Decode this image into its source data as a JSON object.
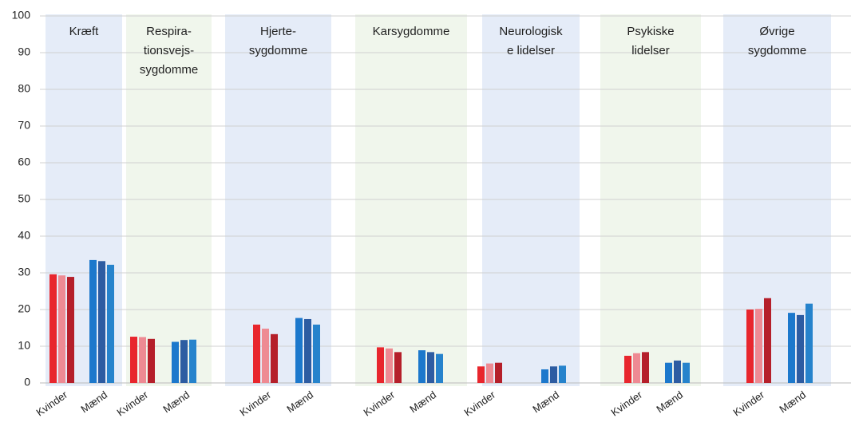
{
  "chart_data": {
    "type": "bar",
    "subgroups": [
      "Kvinder",
      "Mænd"
    ],
    "colors": [
      [
        "#e8262d",
        "#ee8a93",
        "#b51f2a"
      ],
      [
        "#1c78cc",
        "#2d5ca2",
        "#2683cc"
      ]
    ],
    "band_colors": {
      "blue": "#e5ecf8",
      "green": "#f0f6ec"
    },
    "groups": [
      {
        "name_lines": [
          "Kræft"
        ],
        "band": "blue",
        "values": [
          [
            29.6,
            29.3,
            28.9
          ],
          [
            33.5,
            33.2,
            32.2
          ]
        ]
      },
      {
        "name_lines": [
          "Respira-",
          "tionsvejs-",
          "sygdomme"
        ],
        "band": "green",
        "values": [
          [
            12.6,
            12.5,
            12.0
          ],
          [
            11.2,
            11.7,
            11.8
          ]
        ]
      },
      {
        "name_lines": [
          "Hjerte-",
          "sygdomme"
        ],
        "band": "blue",
        "values": [
          [
            15.9,
            14.8,
            13.3
          ],
          [
            17.7,
            17.4,
            15.9
          ]
        ]
      },
      {
        "name_lines": [
          "Karsygdomme"
        ],
        "band": "green",
        "values": [
          [
            9.7,
            9.4,
            8.4
          ],
          [
            8.9,
            8.4,
            7.9
          ]
        ]
      },
      {
        "name_lines": [
          "Neurologisk",
          "e lidelser"
        ],
        "band": "blue",
        "values": [
          [
            4.5,
            5.3,
            5.5
          ],
          [
            3.7,
            4.5,
            4.7
          ]
        ]
      },
      {
        "name_lines": [
          "Psykiske",
          "lidelser"
        ],
        "band": "green",
        "values": [
          [
            7.4,
            8.1,
            8.4
          ],
          [
            5.5,
            6.1,
            5.5
          ]
        ]
      },
      {
        "name_lines": [
          "Øvrige",
          "sygdomme"
        ],
        "band": "blue",
        "values": [
          [
            20.0,
            20.2,
            23.1
          ],
          [
            19.1,
            18.5,
            21.6
          ]
        ]
      }
    ],
    "ylim": [
      0,
      100
    ],
    "yticks": [
      0,
      10,
      20,
      30,
      40,
      50,
      60,
      70,
      80,
      90,
      100
    ],
    "grid": true
  }
}
